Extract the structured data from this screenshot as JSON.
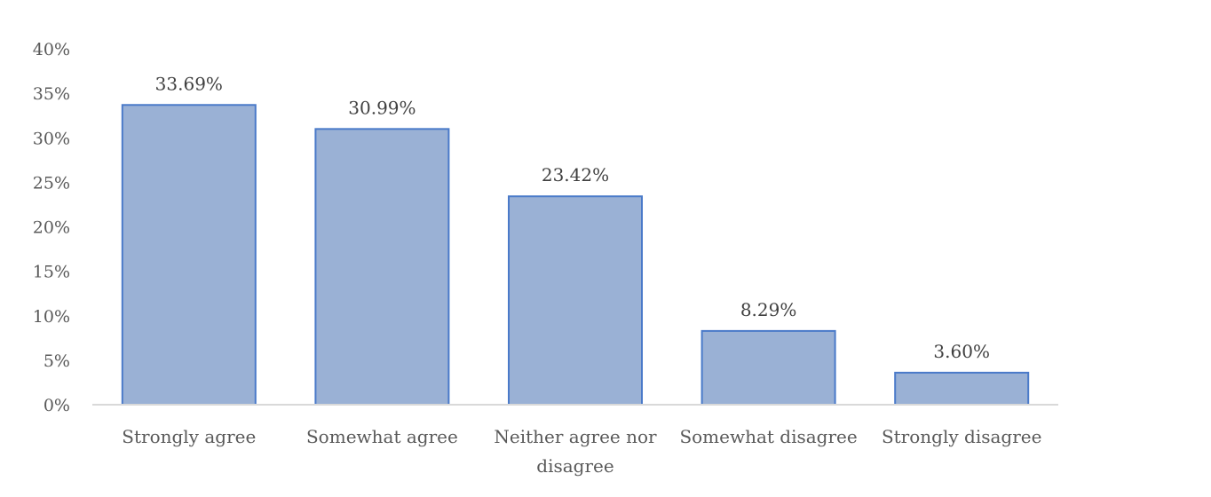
{
  "chart_data": {
    "type": "bar",
    "title": "",
    "xlabel": "",
    "ylabel": "",
    "categories": [
      "Strongly agree",
      "Somewhat agree",
      "Neither agree nor disagree",
      "Somewhat disagree",
      "Strongly disagree"
    ],
    "category_lines": [
      [
        "Strongly agree"
      ],
      [
        "Somewhat agree"
      ],
      [
        "Neither agree nor",
        "disagree"
      ],
      [
        "Somewhat disagree"
      ],
      [
        "Strongly disagree"
      ]
    ],
    "values": [
      33.69,
      30.99,
      23.42,
      8.29,
      3.6
    ],
    "data_labels": [
      "33.69%",
      "30.99%",
      "23.42%",
      "8.29%",
      "3.60%"
    ],
    "ylim": [
      0,
      40
    ],
    "yticks": [
      0,
      5,
      10,
      15,
      20,
      25,
      30,
      35,
      40
    ],
    "ytick_labels": [
      "0%",
      "5%",
      "10%",
      "15%",
      "20%",
      "25%",
      "30%",
      "35%",
      "40%"
    ],
    "grid": false,
    "legend": "none",
    "colors": {
      "bar_fill": "#9ab1d5",
      "bar_stroke": "#4a7ac9",
      "axis": "#d9d9d9"
    }
  }
}
